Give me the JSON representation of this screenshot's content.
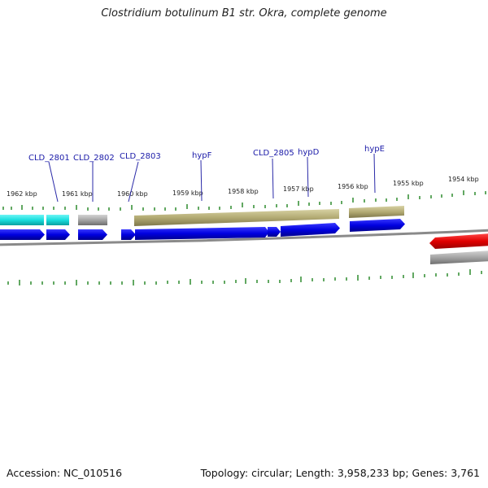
{
  "title": "Clostridium botulinum B1 str. Okra, complete genome",
  "accession": "Accession: NC_010516",
  "summary": "Topology: circular; Length: 3,958,233 bp; Genes: 3,761",
  "colors": {
    "gene_label": "#1a1aa8",
    "cds": "#0a0ae6",
    "cyan_feature": "#1ee6e6",
    "grey_feature": "#a8a8a8",
    "olive_feature": "#b5ae78",
    "red_feature": "#e60000",
    "tick": "#2e8b2e",
    "backbone": "#808080"
  },
  "kbp_labels": [
    "1962 kbp",
    "1961 kbp",
    "1960 kbp",
    "1959 kbp",
    "1958 kbp",
    "1957 kbp",
    "1956 kbp",
    "1955 kbp",
    "1954 kbp"
  ],
  "gene_labels": [
    "CLD_2801",
    "CLD_2802",
    "CLD_2803",
    "hypF",
    "CLD_2805",
    "hypD",
    "hypE"
  ]
}
